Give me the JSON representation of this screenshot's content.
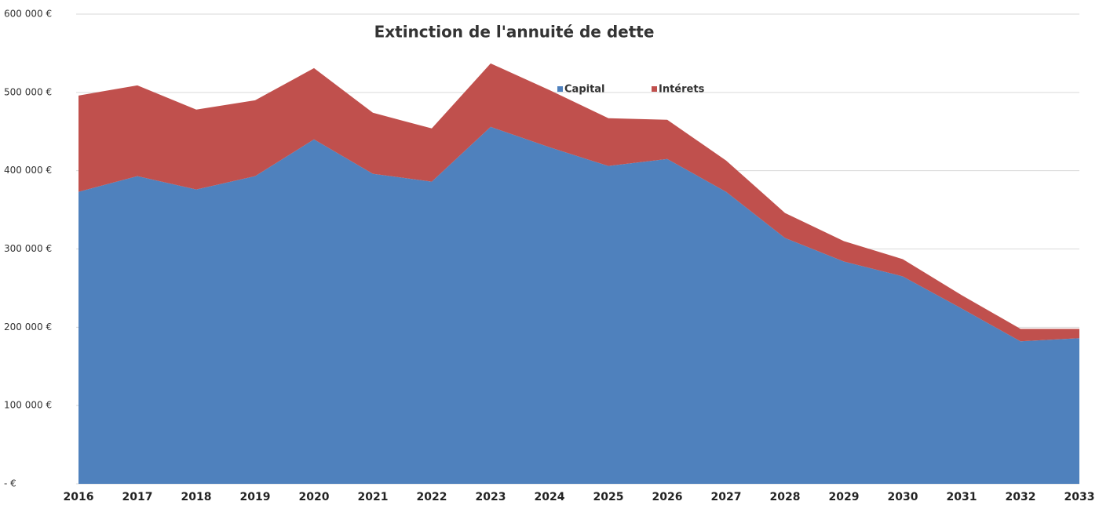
{
  "chart_data": {
    "type": "stacked-area",
    "title": "Extinction de l'annuité de dette",
    "categories": [
      "2016",
      "2017",
      "2018",
      "2019",
      "2020",
      "2021",
      "2022",
      "2023",
      "2024",
      "2025",
      "2026",
      "2027",
      "2028",
      "2029",
      "2030",
      "2031",
      "2032",
      "2033"
    ],
    "series": [
      {
        "name": "Capital",
        "color": "#4f81bd",
        "values": [
          373000,
          393000,
          376000,
          393000,
          440000,
          396000,
          386000,
          456000,
          430000,
          406000,
          415000,
          373000,
          314000,
          284000,
          265000,
          224000,
          182000,
          186000
        ]
      },
      {
        "name": "Intérets",
        "color": "#c0504d",
        "values": [
          123000,
          116000,
          102000,
          97000,
          91000,
          78000,
          68000,
          81000,
          73000,
          61000,
          50000,
          40000,
          32000,
          26000,
          22000,
          17000,
          16000,
          12000
        ]
      }
    ],
    "ylim": [
      0,
      600000
    ],
    "yticks": [
      {
        "value": 0,
        "label": "- €"
      },
      {
        "value": 100000,
        "label": "100 000 €"
      },
      {
        "value": 200000,
        "label": "200 000 €"
      },
      {
        "value": 300000,
        "label": "300 000 €"
      },
      {
        "value": 400000,
        "label": "400 000 €"
      },
      {
        "value": 500000,
        "label": "500 000 €"
      },
      {
        "value": 600000,
        "label": "600 000 €"
      }
    ],
    "grid": true
  }
}
